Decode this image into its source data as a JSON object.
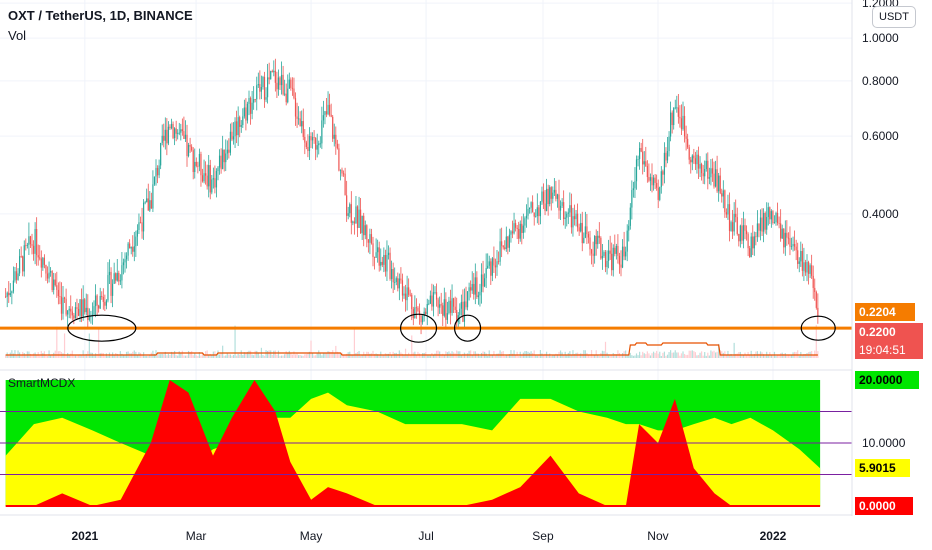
{
  "header": {
    "title": "OXT / TetherUS, 1D, BINANCE",
    "volume_label": "Vol",
    "currency_button": "USDT"
  },
  "indicator": {
    "title": "SmartMCDX"
  },
  "price_tags": {
    "level_price": "0.2204",
    "last_price": "0.2200",
    "countdown": "19:04:51"
  },
  "indicator_tags": {
    "top": "20.0000",
    "current": "5.9015",
    "zero": "0.0000"
  },
  "colors": {
    "up": "#26a69a",
    "down": "#ef5350",
    "level_line": "#f57c00",
    "ma_line": "#e65100",
    "zone_green": "#00e600",
    "zone_yellow": "#ffff00",
    "zone_red": "#ff0000",
    "ref_line": "#7b1fa2",
    "annotation": "#000000"
  },
  "chart_data": [
    {
      "type": "candlestick",
      "title": "OXT / TetherUS, 1D, BINANCE",
      "x_axis": {
        "ticks": [
          "2021",
          "Mar",
          "May",
          "Jul",
          "Sep",
          "Nov",
          "2022"
        ]
      },
      "y_axis": {
        "ticks": [
          1.2,
          1.0,
          0.8,
          0.6,
          0.4
        ],
        "tick_labels": [
          "1.2000",
          "1.0000",
          "0.8000",
          "0.6000",
          "0.4000"
        ],
        "range": [
          0.18,
          1.22
        ],
        "scale": "log"
      },
      "horizontal_level": 0.2204,
      "annotations": [
        "circle",
        "circle",
        "circle",
        "circle"
      ],
      "grid": true,
      "close_series": [
        {
          "date": "2020-11-20",
          "close": 0.26
        },
        {
          "date": "2020-12-05",
          "close": 0.35
        },
        {
          "date": "2020-12-20",
          "close": 0.25
        },
        {
          "date": "2021-01-05",
          "close": 0.24
        },
        {
          "date": "2021-01-20",
          "close": 0.3
        },
        {
          "date": "2021-02-05",
          "close": 0.43
        },
        {
          "date": "2021-02-15",
          "close": 0.65
        },
        {
          "date": "2021-02-25",
          "close": 0.55
        },
        {
          "date": "2021-03-10",
          "close": 0.47
        },
        {
          "date": "2021-03-20",
          "close": 0.61
        },
        {
          "date": "2021-04-01",
          "close": 0.74
        },
        {
          "date": "2021-04-12",
          "close": 0.82
        },
        {
          "date": "2021-04-20",
          "close": 0.75
        },
        {
          "date": "2021-05-01",
          "close": 0.55
        },
        {
          "date": "2021-05-10",
          "close": 0.68
        },
        {
          "date": "2021-05-20",
          "close": 0.42
        },
        {
          "date": "2021-06-05",
          "close": 0.33
        },
        {
          "date": "2021-06-20",
          "close": 0.27
        },
        {
          "date": "2021-06-28",
          "close": 0.23
        },
        {
          "date": "2021-07-05",
          "close": 0.25
        },
        {
          "date": "2021-07-20",
          "close": 0.24
        },
        {
          "date": "2021-08-05",
          "close": 0.31
        },
        {
          "date": "2021-08-20",
          "close": 0.38
        },
        {
          "date": "2021-09-05",
          "close": 0.44
        },
        {
          "date": "2021-09-20",
          "close": 0.37
        },
        {
          "date": "2021-10-05",
          "close": 0.32
        },
        {
          "date": "2021-10-15",
          "close": 0.32
        },
        {
          "date": "2021-10-22",
          "close": 0.56
        },
        {
          "date": "2021-11-01",
          "close": 0.42
        },
        {
          "date": "2021-11-10",
          "close": 0.72
        },
        {
          "date": "2021-11-20",
          "close": 0.52
        },
        {
          "date": "2021-12-01",
          "close": 0.49
        },
        {
          "date": "2021-12-10",
          "close": 0.38
        },
        {
          "date": "2021-12-20",
          "close": 0.34
        },
        {
          "date": "2021-12-30",
          "close": 0.4
        },
        {
          "date": "2022-01-10",
          "close": 0.33
        },
        {
          "date": "2022-01-20",
          "close": 0.3
        },
        {
          "date": "2022-01-25",
          "close": 0.22
        }
      ]
    },
    {
      "type": "area",
      "title": "SmartMCDX",
      "y_axis": {
        "ticks": [
          20,
          10
        ],
        "tick_labels": [
          "20.0000",
          "10.0000"
        ],
        "range": [
          0,
          20
        ]
      },
      "reference_lines": [
        15,
        10,
        5
      ],
      "current_value": 5.9015,
      "series": [
        {
          "name": "",
          "dates": [
            "2020-11-20",
            "2020-12-05",
            "2020-12-20",
            "2021-01-05",
            "2021-01-20",
            "2021-02-05",
            "2021-02-15",
            "2021-02-25",
            "2021-03-10",
            "2021-03-20",
            "2021-04-01",
            "2021-04-12",
            "2021-04-20",
            "2021-05-01",
            "2021-05-10",
            "2021-05-20",
            "2021-06-05",
            "2021-06-20",
            "2021-07-05",
            "2021-07-20",
            "2021-08-05",
            "2021-08-20",
            "2021-09-05",
            "2021-09-20",
            "2021-10-05",
            "2021-10-15",
            "2021-10-22",
            "2021-11-01",
            "2021-11-10",
            "2021-11-20",
            "2021-12-01",
            "2021-12-10",
            "2021-12-20",
            "2022-01-01",
            "2022-01-15",
            "2022-01-26"
          ],
          "values": [
            8,
            13,
            14,
            12,
            10,
            8,
            6,
            6,
            9,
            10,
            14,
            14,
            14,
            17,
            18,
            16,
            15,
            13,
            13,
            13,
            12,
            17,
            17,
            15,
            14,
            13,
            13,
            12,
            12,
            13,
            14,
            13,
            14,
            12,
            9,
            6
          ]
        },
        {
          "name": "",
          "dates": [
            "2020-11-20",
            "2020-12-05",
            "2020-12-20",
            "2021-01-05",
            "2021-01-20",
            "2021-02-05",
            "2021-02-15",
            "2021-02-25",
            "2021-03-10",
            "2021-03-20",
            "2021-04-01",
            "2021-04-12",
            "2021-04-20",
            "2021-05-01",
            "2021-05-10",
            "2021-05-20",
            "2021-06-05",
            "2021-06-20",
            "2021-07-05",
            "2021-07-20",
            "2021-08-05",
            "2021-08-20",
            "2021-09-05",
            "2021-09-20",
            "2021-10-05",
            "2021-10-15",
            "2021-10-22",
            "2021-11-01",
            "2021-11-10",
            "2021-11-20",
            "2021-12-01",
            "2021-12-10",
            "2021-12-20",
            "2022-01-01",
            "2022-01-15",
            "2022-01-26"
          ],
          "values": [
            0,
            0,
            2,
            0,
            1,
            10,
            20,
            18,
            8,
            14,
            20,
            15,
            7,
            1,
            3,
            2,
            0,
            0,
            0,
            0,
            1,
            3,
            8,
            2,
            0,
            0,
            13,
            10,
            17,
            6,
            2,
            0,
            0,
            0,
            0,
            0
          ]
        }
      ]
    }
  ]
}
